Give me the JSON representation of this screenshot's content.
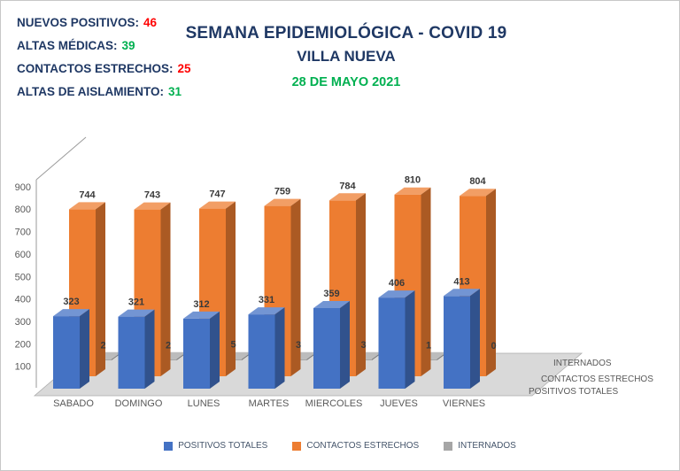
{
  "stats": {
    "label_color": "#1F3864",
    "items": [
      {
        "label": "NUEVOS POSITIVOS:",
        "value": "46",
        "color": "#FF0000"
      },
      {
        "label": "ALTAS MÉDICAS:",
        "value": "39",
        "color": "#00B050"
      },
      {
        "label": "CONTACTOS ESTRECHOS:",
        "value": "25",
        "color": "#FF0000"
      },
      {
        "label": "ALTAS DE AISLAMIENTO:",
        "value": "31",
        "color": "#00B050"
      }
    ]
  },
  "title": {
    "line1": "SEMANA EPIDEMIOLÓGICA - COVID 19",
    "line2": "VILLA NUEVA",
    "date": "28 DE MAYO 2021",
    "title_color": "#1F3864",
    "date_color": "#00B050"
  },
  "chart_data": {
    "type": "bar",
    "style": "3d-column-depth-series",
    "categories": [
      "SABADO",
      "DOMINGO",
      "LUNES",
      "MARTES",
      "MIERCOLES",
      "JUEVES",
      "VIERNES"
    ],
    "series": [
      {
        "name": "POSITIVOS TOTALES",
        "color": "#4472C4",
        "values": [
          323,
          321,
          312,
          331,
          359,
          406,
          413
        ]
      },
      {
        "name": "CONTACTOS ESTRECHOS",
        "color": "#ED7D31",
        "values": [
          744,
          743,
          747,
          759,
          784,
          810,
          804
        ]
      },
      {
        "name": "INTERNADOS",
        "color": "#A6A6A6",
        "values": [
          2,
          2,
          5,
          3,
          3,
          1,
          0
        ]
      }
    ],
    "ylim": [
      0,
      900
    ],
    "yticks": [
      100,
      200,
      300,
      400,
      500,
      600,
      700,
      800,
      900
    ],
    "grid": false,
    "legend_position": "bottom"
  }
}
